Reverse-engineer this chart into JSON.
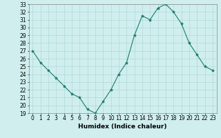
{
  "x": [
    0,
    1,
    2,
    3,
    4,
    5,
    6,
    7,
    8,
    9,
    10,
    11,
    12,
    13,
    14,
    15,
    16,
    17,
    18,
    19,
    20,
    21,
    22,
    23
  ],
  "y": [
    27,
    25.5,
    24.5,
    23.5,
    22.5,
    21.5,
    21,
    19.5,
    19,
    20.5,
    22,
    24,
    25.5,
    29,
    31.5,
    31,
    32.5,
    33,
    32,
    30.5,
    28,
    26.5,
    25,
    24.5
  ],
  "line_color": "#1a7a6e",
  "marker": "*",
  "marker_size": 3,
  "bg_color": "#d0eeee",
  "xlabel": "Humidex (Indice chaleur)",
  "xlim": [
    -0.5,
    23.5
  ],
  "ylim": [
    19,
    33
  ],
  "xticks": [
    0,
    1,
    2,
    3,
    4,
    5,
    6,
    7,
    8,
    9,
    10,
    11,
    12,
    13,
    14,
    15,
    16,
    17,
    18,
    19,
    20,
    21,
    22,
    23
  ],
  "yticks": [
    19,
    20,
    21,
    22,
    23,
    24,
    25,
    26,
    27,
    28,
    29,
    30,
    31,
    32,
    33
  ],
  "grid_color": "#b0d8d8",
  "tick_fontsize": 5.5,
  "label_fontsize": 6.5
}
